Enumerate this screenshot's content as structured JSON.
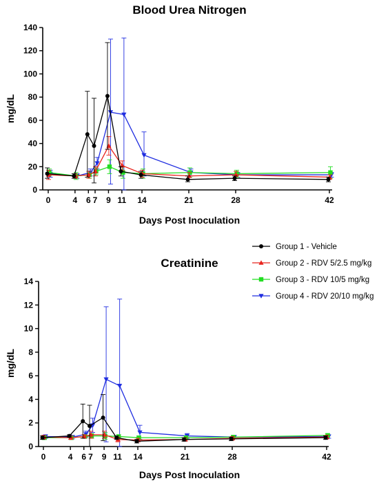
{
  "chart_data": [
    {
      "type": "line",
      "title": "Blood  Urea  Nitrogen",
      "xlabel": "Days Post Inoculation",
      "ylabel": "mg/dL",
      "xticks": [
        0,
        4,
        6,
        7,
        9,
        11,
        14,
        21,
        28,
        42
      ],
      "yticks": [
        0,
        20,
        40,
        60,
        80,
        100,
        120,
        140
      ],
      "ylim": [
        0,
        140
      ],
      "grid": false,
      "x": [
        0,
        4,
        6,
        7,
        9,
        11,
        14,
        21,
        28,
        42
      ],
      "series": [
        {
          "name": "Group 1 - Vehicle",
          "color": "#000000",
          "marker": "circle",
          "values": [
            14,
            12,
            48,
            38,
            81,
            16,
            13,
            9,
            10,
            9
          ],
          "error_upper": [
            19,
            14,
            85,
            79,
            127,
            20,
            16,
            12,
            12,
            11
          ],
          "error_lower": [
            10,
            10,
            11,
            6,
            35,
            12,
            10,
            7,
            8,
            7
          ]
        },
        {
          "name": "Group 2 - RDV 5/2.5 mg/kg",
          "color": "#e8231c",
          "marker": "triangle-up",
          "values": [
            13,
            12,
            13,
            16,
            38,
            21,
            14,
            12,
            13,
            11
          ],
          "error_upper": [
            17,
            14,
            16,
            20,
            46,
            25,
            17,
            15,
            16,
            13
          ],
          "error_lower": [
            9,
            10,
            10,
            12,
            30,
            17,
            11,
            9,
            10,
            9
          ]
        },
        {
          "name": "Group 3 - RDV 10/5 mg/kg",
          "color": "#22dd22",
          "marker": "square",
          "values": [
            15,
            12,
            13,
            16,
            20,
            15,
            14,
            15,
            14,
            15
          ],
          "error_upper": [
            18,
            15,
            16,
            19,
            26,
            20,
            18,
            19,
            17,
            20
          ],
          "error_lower": [
            12,
            9,
            10,
            13,
            14,
            10,
            10,
            11,
            11,
            10
          ]
        },
        {
          "name": "Group 4 - RDV 20/10 mg/kg",
          "color": "#1f2de0",
          "marker": "triangle-down",
          "values": [
            14,
            12,
            15,
            23,
            67,
            65,
            30,
            15,
            13,
            13
          ],
          "error_upper": [
            17,
            14,
            18,
            28,
            130,
            131,
            50,
            18,
            15,
            15
          ],
          "error_lower": [
            11,
            10,
            12,
            18,
            5,
            0,
            12,
            12,
            11,
            11
          ]
        }
      ]
    },
    {
      "type": "line",
      "title": "Creatinine",
      "xlabel": "Days Post Inoculation",
      "ylabel": "mg/dL",
      "xticks": [
        0,
        4,
        6,
        7,
        9,
        11,
        14,
        21,
        28,
        42
      ],
      "yticks": [
        0,
        2,
        4,
        6,
        8,
        10,
        12,
        14
      ],
      "ylim": [
        0,
        14
      ],
      "grid": false,
      "x": [
        0,
        4,
        6,
        7,
        9,
        11,
        14,
        21,
        28,
        42
      ],
      "series": [
        {
          "name": "Group 1 - Vehicle",
          "color": "#000000",
          "marker": "circle",
          "values": [
            0.75,
            0.9,
            2.15,
            1.75,
            2.45,
            0.75,
            0.45,
            0.6,
            0.65,
            0.75
          ],
          "error_upper": [
            0.9,
            1.0,
            3.6,
            3.5,
            4.4,
            0.9,
            0.6,
            0.75,
            0.8,
            0.9
          ],
          "error_lower": [
            0.6,
            0.8,
            0.7,
            0.0,
            0.5,
            0.6,
            0.3,
            0.45,
            0.5,
            0.6
          ]
        },
        {
          "name": "Group 2 - RDV 5/2.5 mg/kg",
          "color": "#e8231c",
          "marker": "triangle-up",
          "values": [
            0.8,
            0.75,
            0.85,
            1.0,
            1.0,
            0.6,
            0.55,
            0.6,
            0.7,
            0.8
          ],
          "error_upper": [
            0.95,
            0.9,
            1.0,
            1.3,
            1.3,
            0.8,
            0.7,
            0.75,
            0.85,
            0.95
          ],
          "error_lower": [
            0.65,
            0.6,
            0.7,
            0.7,
            0.7,
            0.4,
            0.4,
            0.45,
            0.55,
            0.65
          ]
        },
        {
          "name": "Group 3 - RDV 10/5 mg/kg",
          "color": "#22dd22",
          "marker": "square",
          "values": [
            0.75,
            0.75,
            0.85,
            0.9,
            0.9,
            0.85,
            0.75,
            0.75,
            0.8,
            0.95
          ],
          "error_upper": [
            0.9,
            0.9,
            1.0,
            1.1,
            1.2,
            1.0,
            0.9,
            0.9,
            0.95,
            1.1
          ],
          "error_lower": [
            0.6,
            0.6,
            0.7,
            0.7,
            0.6,
            0.7,
            0.6,
            0.6,
            0.65,
            0.8
          ]
        },
        {
          "name": "Group 4 - RDV 20/10 mg/kg",
          "color": "#1f2de0",
          "marker": "triangle-down",
          "values": [
            0.85,
            0.8,
            1.05,
            1.8,
            5.7,
            5.15,
            1.2,
            0.9,
            0.8,
            0.85
          ],
          "error_upper": [
            1.0,
            0.95,
            1.3,
            2.4,
            11.85,
            12.5,
            1.8,
            1.1,
            0.95,
            1.0
          ],
          "error_lower": [
            0.7,
            0.65,
            0.8,
            1.2,
            0.4,
            0.0,
            0.6,
            0.7,
            0.65,
            0.7
          ]
        }
      ]
    }
  ],
  "legend": {
    "placement": "between-panels-right",
    "entries": [
      "Group 1 - Vehicle",
      "Group 2 - RDV 5/2.5 mg/kg",
      "Group 3 - RDV 10/5 mg/kg",
      "Group 4 - RDV 20/10 mg/kg"
    ]
  }
}
